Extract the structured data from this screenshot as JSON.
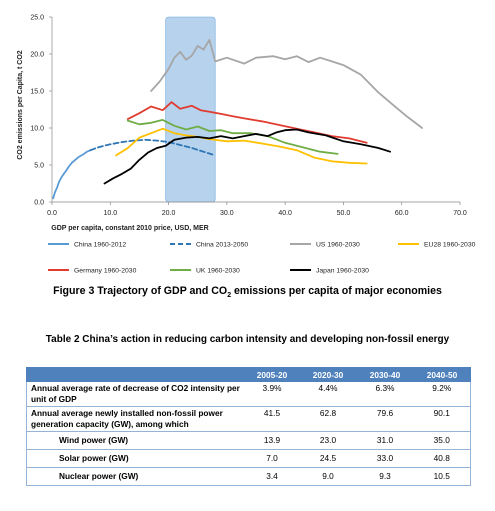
{
  "chart_data": {
    "type": "line",
    "ylabel": "CO2 emissions per Capita, t CO2",
    "xlabel": "GDP per capita, constant 2010 price, USD, MER",
    "xlim": [
      0,
      70
    ],
    "ylim": [
      0,
      25
    ],
    "x_ticks": [
      "0.0",
      "10.0",
      "20.0",
      "30.0",
      "40.0",
      "50.0",
      "60.0",
      "70.0"
    ],
    "y_ticks": [
      "0.0",
      "5.0",
      "10.0",
      "15.0",
      "20.0",
      "25.0"
    ],
    "highlight_band": {
      "x_range": [
        19.5,
        28
      ],
      "color": "#9dc3e6"
    },
    "grid": false,
    "legend_position": "bottom",
    "series": [
      {
        "name": "China 1960-2012",
        "color": "#5b9bd5",
        "dash": "solid",
        "x": [
          0.2,
          0.5,
          0.9,
          1.2,
          1.6,
          2.0,
          2.4,
          2.9,
          3.4,
          4.0,
          4.6,
          5.3,
          6.0,
          6.6
        ],
        "y": [
          0.5,
          1.3,
          2.0,
          2.7,
          3.3,
          3.8,
          4.2,
          4.8,
          5.3,
          5.7,
          6.1,
          6.4,
          6.8,
          7.0
        ]
      },
      {
        "name": "China 2013-2050",
        "color": "#2e75b6",
        "dash": "dashed",
        "x": [
          6.6,
          8,
          10,
          12,
          14,
          16,
          18,
          20,
          22,
          24,
          26,
          28
        ],
        "y": [
          7.0,
          7.4,
          7.8,
          8.1,
          8.3,
          8.4,
          8.3,
          8.1,
          7.7,
          7.3,
          6.8,
          6.3
        ]
      },
      {
        "name": "US 1960-2030",
        "color": "#a6a6a6",
        "dash": "solid",
        "x": [
          17,
          18.5,
          20,
          21,
          22,
          23,
          24,
          25,
          26,
          27,
          28,
          30,
          33,
          35,
          38,
          40,
          42,
          44,
          46,
          48,
          50,
          53,
          56,
          59,
          61,
          63.5
        ],
        "y": [
          15.0,
          16.3,
          18.0,
          19.5,
          20.3,
          19.2,
          19.8,
          21.1,
          20.6,
          21.9,
          19.0,
          19.5,
          18.7,
          19.5,
          19.7,
          19.3,
          19.7,
          18.9,
          19.5,
          19.0,
          18.5,
          17.2,
          14.8,
          12.8,
          11.5,
          10.0
        ]
      },
      {
        "name": "EU28 1960-2030",
        "color": "#ffc000",
        "dash": "solid",
        "x": [
          11,
          13,
          15,
          17,
          19,
          21,
          23,
          25,
          27,
          30,
          33,
          36,
          39,
          42,
          45,
          48,
          51,
          54
        ],
        "y": [
          6.3,
          7.3,
          8.7,
          9.3,
          9.9,
          9.3,
          9.0,
          8.8,
          8.5,
          8.2,
          8.3,
          7.9,
          7.5,
          7.0,
          6.0,
          5.5,
          5.3,
          5.2
        ]
      },
      {
        "name": "Germany 1960-2030",
        "color": "#e03c31",
        "dash": "solid",
        "x": [
          13,
          15,
          17,
          19,
          20.5,
          22,
          24,
          25.5,
          27,
          29,
          31,
          33,
          36,
          39,
          42,
          45,
          48,
          51,
          54
        ],
        "y": [
          11.2,
          12.0,
          12.9,
          12.4,
          13.5,
          12.6,
          13.0,
          12.4,
          12.2,
          11.9,
          11.6,
          11.3,
          10.9,
          10.4,
          9.9,
          9.4,
          8.9,
          8.6,
          8.0
        ]
      },
      {
        "name": "UK 1960-2030",
        "color": "#70ad47",
        "dash": "solid",
        "x": [
          13,
          15,
          17,
          19,
          21,
          23,
          25,
          27,
          29,
          31,
          34,
          37,
          40,
          43,
          46,
          49
        ],
        "y": [
          11.0,
          10.5,
          10.7,
          11.1,
          10.3,
          9.8,
          10.2,
          9.6,
          9.7,
          9.3,
          9.3,
          8.9,
          8.0,
          7.4,
          6.8,
          6.5
        ]
      },
      {
        "name": "Japan 1960-2030",
        "color": "#000000",
        "dash": "solid",
        "x": [
          9,
          10.5,
          12,
          13.5,
          15,
          16.5,
          18,
          19.5,
          21,
          23,
          25,
          27,
          29,
          31,
          33,
          35,
          37,
          38.5,
          40,
          42,
          44,
          47,
          50,
          53,
          56,
          58
        ],
        "y": [
          2.5,
          3.2,
          3.8,
          4.5,
          5.7,
          6.7,
          7.3,
          7.6,
          8.4,
          8.7,
          8.8,
          8.6,
          8.9,
          8.6,
          8.9,
          9.2,
          8.9,
          9.4,
          9.7,
          9.8,
          9.4,
          9.0,
          8.2,
          7.8,
          7.3,
          6.8
        ]
      }
    ]
  },
  "figure_caption": {
    "before": "Figure 3 Trajectory of GDP and CO",
    "sub": "2",
    "after": " emissions per capita of major economies"
  },
  "table_caption": "Table 2 China’s action in reducing carbon intensity and developing non-fossil energy",
  "table": {
    "headers": [
      "",
      "2005-20",
      "2020-30",
      "2030-40",
      "2040-50"
    ],
    "rows": [
      {
        "label": "Annual average rate of decrease of CO2 intensity per unit of GDP",
        "values": [
          "3.9%",
          "4.4%",
          "6.3%",
          "9.2%"
        ],
        "indent": false
      },
      {
        "label": "Annual average newly installed non-fossil power generation capacity (GW), among which",
        "values": [
          "41.5",
          "62.8",
          "79.6",
          "90.1"
        ],
        "indent": false
      },
      {
        "label": "Wind power (GW)",
        "values": [
          "13.9",
          "23.0",
          "31.0",
          "35.0"
        ],
        "indent": true
      },
      {
        "label": "Solar power (GW)",
        "values": [
          "7.0",
          "24.5",
          "33.0",
          "40.8"
        ],
        "indent": true
      },
      {
        "label": "Nuclear power (GW)",
        "values": [
          "3.4",
          "9.0",
          "9.3",
          "10.5"
        ],
        "indent": true
      }
    ]
  }
}
